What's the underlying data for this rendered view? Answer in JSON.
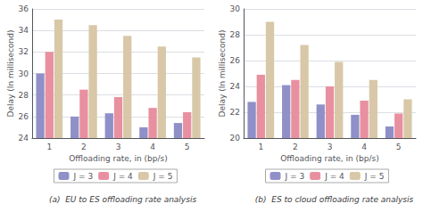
{
  "chart_data": [
    {
      "type": "bar",
      "title": "(a)  EU to ES offloading rate analysis",
      "xlabel": "Offloading rate, in (bp/s)",
      "ylabel": "Delay (In millisecond)",
      "categories": [
        1,
        2,
        3,
        4,
        5
      ],
      "series": [
        {
          "name": "J = 3",
          "color": "#9090c8",
          "values": [
            30.0,
            26.0,
            26.3,
            25.0,
            25.4
          ]
        },
        {
          "name": "J = 4",
          "color": "#e890a0",
          "values": [
            32.0,
            28.5,
            27.8,
            26.8,
            26.4
          ]
        },
        {
          "name": "J = 5",
          "color": "#d8c8a8",
          "values": [
            35.0,
            34.5,
            33.5,
            32.5,
            31.5
          ]
        }
      ],
      "ylim": [
        24,
        36
      ],
      "yticks": [
        24,
        26,
        28,
        30,
        32,
        34,
        36
      ],
      "grid": true,
      "legend": "bottom"
    },
    {
      "type": "bar",
      "title": "(b)  ES to cloud offloading rate analysis",
      "xlabel": "Offloading rate, in (bp/s)",
      "ylabel": "Delay (In millisecond)",
      "categories": [
        1,
        2,
        3,
        4,
        5
      ],
      "series": [
        {
          "name": "J = 3",
          "color": "#9090c8",
          "values": [
            22.8,
            24.1,
            22.6,
            21.8,
            20.9
          ]
        },
        {
          "name": "J = 4",
          "color": "#e890a0",
          "values": [
            24.9,
            24.5,
            24.0,
            22.9,
            21.9
          ]
        },
        {
          "name": "J = 5",
          "color": "#d8c8a8",
          "values": [
            29.0,
            27.2,
            25.9,
            24.5,
            23.0
          ]
        }
      ],
      "ylim": [
        20,
        30
      ],
      "yticks": [
        20,
        22,
        24,
        26,
        28,
        30
      ],
      "grid": true,
      "legend": "bottom"
    }
  ]
}
